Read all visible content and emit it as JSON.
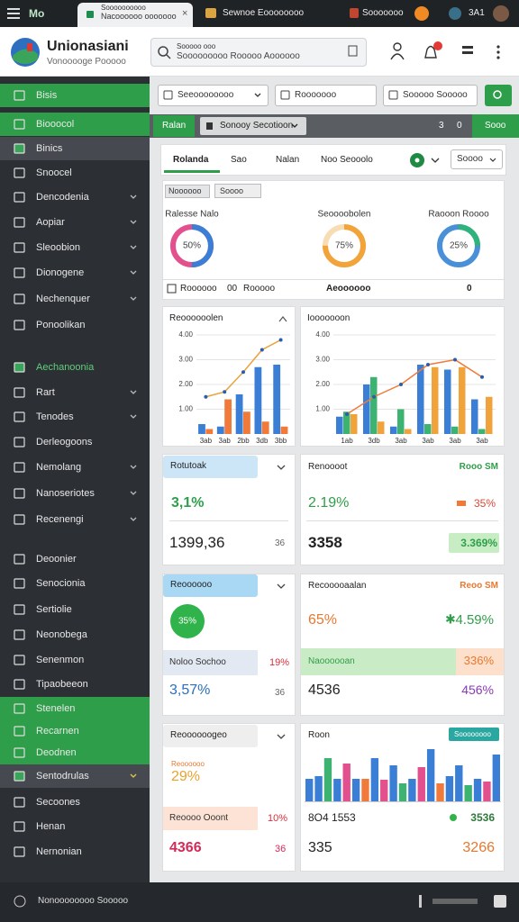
{
  "browser": {
    "menu": "Mo",
    "tab_title": "Soooooooooo",
    "tab_subtitle": "Nacoooooo ooooooo",
    "tab2": "Sewnoe Eoooooooo",
    "tab3": "Sooooooo",
    "badge": "3A1"
  },
  "header": {
    "title": "Unionasiani",
    "subtitle": "Vonooooge Pooooo",
    "search_label": "Sooooo ooo",
    "search_text": "Sooooooooo Rooooo Aoooooo"
  },
  "sidebar": {
    "items": [
      {
        "label": "Bisis",
        "style": "green"
      },
      {
        "label": "Biooocol",
        "style": "green"
      },
      {
        "label": "Binics",
        "style": "dark"
      },
      {
        "label": "Snoocel"
      },
      {
        "label": "Dencodenia",
        "chevron": true
      },
      {
        "label": "Aopiar",
        "chevron": true
      },
      {
        "label": "Sleoobion",
        "chevron": true
      },
      {
        "label": "Dionogene",
        "chevron": true
      },
      {
        "label": "Nechenquer",
        "chevron": true
      },
      {
        "label": "Ponoolikan"
      },
      {
        "label": "Aechanoonia",
        "style": "green-text"
      },
      {
        "label": "Rart",
        "chevron": true
      },
      {
        "label": "Tenodes",
        "chevron": true
      },
      {
        "label": "Derleogoons"
      },
      {
        "label": "Nemolang",
        "chevron": true
      },
      {
        "label": "Nanoseriotes",
        "chevron": true
      },
      {
        "label": "Recenengi",
        "chevron": true
      },
      {
        "label": "Deoonier"
      },
      {
        "label": "Senocionia"
      },
      {
        "label": "Sertiolie"
      },
      {
        "label": "Neonobega"
      },
      {
        "label": "Senenmon"
      },
      {
        "label": "Tipaobeeon"
      },
      {
        "label": "Stenelen",
        "style": "green"
      },
      {
        "label": "Recarnen",
        "style": "green"
      },
      {
        "label": "Deodnen",
        "style": "green"
      },
      {
        "label": "Sentodrulas",
        "style": "dark",
        "chevron": true
      },
      {
        "label": "Secoones"
      },
      {
        "label": "Henan"
      },
      {
        "label": "Nernonian"
      }
    ],
    "footer": "Nonoooooooo Sooooo"
  },
  "toolbar": {
    "filters": [
      "Seeoooooooo",
      "Rooooooo",
      "Sooooo Sooooo"
    ]
  },
  "subbar": {
    "left": "Ralan",
    "select": "Sonooy Secotioon",
    "count": "3",
    "count2": "0",
    "right": "Sooo"
  },
  "tabs": {
    "items": [
      "Rolanda",
      "Sao",
      "Nalan",
      "Noo Seooolo"
    ],
    "active": 0,
    "select": "Soooo"
  },
  "overview": {
    "filter": "Noooooo",
    "select": "Soooo",
    "donuts": [
      {
        "label": "Ralesse Nalo",
        "value": 50,
        "value_label": "50%",
        "color": "#3a7fd5",
        "rest": "#e2508d"
      },
      {
        "label": "Seoooobolen",
        "value": 75,
        "value_label": "75%",
        "color": "#f2a33a",
        "rest": "#f7dcb4"
      },
      {
        "label": "Raooon Roooo",
        "value": 25,
        "value_label": "25%",
        "color": "#2fb37a",
        "rest": "#4a90d9"
      }
    ],
    "footer_left": "Roooooo",
    "footer_mid": "00",
    "footer_mid2": "Rooooo",
    "footer_center": "Aeoooooo",
    "footer_right": "0"
  },
  "charts": [
    {
      "type": "bar",
      "title": "Reoooooolen",
      "ylim": [
        0,
        4
      ],
      "yticks": [
        {
          "value": 1,
          "label": "1.00"
        },
        {
          "value": 2,
          "label": "2.00"
        },
        {
          "value": 3,
          "label": "3.00"
        },
        {
          "value": 4,
          "label": "4.00"
        }
      ],
      "categories": [
        "3ab",
        "3ab",
        "2bb",
        "3db",
        "3bb"
      ],
      "series": [
        {
          "color": "#3a7fd5",
          "values": [
            0.4,
            0.3,
            1.6,
            2.7,
            2.8
          ]
        },
        {
          "color": "#f07a3a",
          "values": [
            0.2,
            1.4,
            0.9,
            0.5,
            0.3
          ]
        },
        {
          "type": "line",
          "color": "#e8a33a",
          "values": [
            1.5,
            1.7,
            2.5,
            3.4,
            3.8
          ]
        }
      ]
    },
    {
      "type": "bar",
      "title": "Iooooooon",
      "ylim": [
        0,
        4
      ],
      "yticks": [
        {
          "value": 1,
          "label": "1.00"
        },
        {
          "value": 2,
          "label": "2.00"
        },
        {
          "value": 3,
          "label": "3.00"
        },
        {
          "value": 4,
          "label": "4.00"
        }
      ],
      "categories": [
        "1ab",
        "3db",
        "3ab",
        "3ab",
        "3ab",
        "3ab"
      ],
      "series": [
        {
          "color": "#3a7fd5",
          "values": [
            0.7,
            2.0,
            0.3,
            2.8,
            2.6,
            1.4
          ]
        },
        {
          "color": "#3cb371",
          "values": [
            0.9,
            2.3,
            1.0,
            0.4,
            0.3,
            0.2
          ]
        },
        {
          "color": "#f0a33a",
          "values": [
            0.8,
            0.5,
            0.2,
            2.7,
            2.7,
            1.5
          ]
        },
        {
          "type": "line",
          "color": "#f07a3a",
          "values": [
            0.8,
            1.5,
            2.0,
            2.8,
            3.0,
            2.3
          ]
        }
      ]
    }
  ],
  "cards": {
    "r1_left": {
      "title": "Rotutoak",
      "percent": "3,1%",
      "value": "1399,36",
      "note": "36"
    },
    "r1_right": {
      "title": "Renoooot",
      "tag": "Rooo SM",
      "percent": "2.19%",
      "percent2": "35%",
      "value": "3358",
      "badge": "3.369%"
    },
    "r2_left": {
      "title": "Reoooooo",
      "circle": "35%",
      "sub": "Noloo Sochoo",
      "sub_value": "19%",
      "value": "3,57%",
      "note": "36"
    },
    "r2_right": {
      "title": "Recooooaalan",
      "tag": "Reoo SM",
      "percent": "65%",
      "percent2": "4.59%",
      "sub": "Naoooooan",
      "sub_value": "336%",
      "value": "4536",
      "value2": "456%"
    },
    "r3_left": {
      "title": "Reoooooogeo",
      "small": "Reoooooo",
      "percent": "29%",
      "sub": "Reoooo Ooont",
      "sub_value": "10%",
      "value": "4366",
      "note": "36"
    },
    "r3_right": {
      "title": "Roon",
      "tag": "Soooooooo",
      "footer": "8O4 1553",
      "footer2": "3536",
      "value": "335",
      "value2": "3266",
      "chart": {
        "type": "bar",
        "ylim": [
          0,
          60
        ],
        "values": [
          25,
          28,
          48,
          25,
          42,
          25,
          25,
          48,
          24,
          40,
          20,
          25,
          38,
          58,
          20,
          28,
          40,
          18,
          25,
          22,
          52
        ],
        "colors": [
          "#3a7fd5",
          "#3a7fd5",
          "#3cb371",
          "#3a7fd5",
          "#e2508d",
          "#3a7fd5",
          "#f07a3a",
          "#3a7fd5",
          "#e2508d",
          "#3a7fd5",
          "#3cb371",
          "#3a7fd5",
          "#e2508d",
          "#3a7fd5",
          "#f07a3a",
          "#3a7fd5",
          "#3a7fd5",
          "#3cb371",
          "#3a7fd5",
          "#e2508d",
          "#3a7fd5"
        ]
      }
    }
  }
}
